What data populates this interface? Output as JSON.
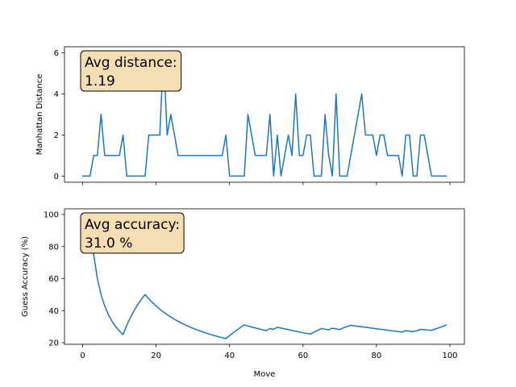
{
  "chart_data": [
    {
      "type": "line",
      "title": "",
      "xlabel": "",
      "ylabel": "Manhattan Distance",
      "xlim": [
        -4.95,
        103.95
      ],
      "ylim": [
        -0.3,
        6.3
      ],
      "xticks": [
        0,
        20,
        40,
        60,
        80,
        100
      ],
      "xtick_labels_visible": false,
      "yticks": [
        0,
        2,
        4,
        6
      ],
      "ytick_labels": [
        "0",
        "2",
        "4",
        "6"
      ],
      "grid": false,
      "annotation": {
        "line1": "Avg distance:",
        "line2": "1.19",
        "placement": "top-left",
        "facecolor": "#f5deb3"
      },
      "series": [
        {
          "color": "#1f77b4",
          "x": [
            0,
            1,
            2,
            3,
            4,
            5,
            6,
            7,
            8,
            9,
            10,
            11,
            12,
            13,
            14,
            15,
            16,
            17,
            18,
            19,
            20,
            21,
            22,
            23,
            24,
            25,
            26,
            27,
            28,
            29,
            30,
            31,
            32,
            33,
            34,
            35,
            36,
            37,
            38,
            39,
            40,
            41,
            42,
            43,
            44,
            45,
            46,
            47,
            48,
            49,
            50,
            51,
            52,
            53,
            54,
            55,
            56,
            57,
            58,
            59,
            60,
            61,
            62,
            63,
            64,
            65,
            66,
            67,
            68,
            69,
            70,
            71,
            72,
            73,
            74,
            75,
            76,
            77,
            78,
            79,
            80,
            81,
            82,
            83,
            84,
            85,
            86,
            87,
            88,
            89,
            90,
            91,
            92,
            93,
            94,
            95,
            96,
            97,
            98,
            99
          ],
          "y": [
            0,
            0,
            0,
            1,
            1,
            3,
            1,
            1,
            1,
            1,
            1,
            2,
            0,
            0,
            0,
            0,
            0,
            0,
            2,
            2,
            2,
            2,
            6,
            2,
            3,
            2,
            1,
            1,
            1,
            1,
            1,
            1,
            1,
            1,
            1,
            1,
            1,
            1,
            1,
            2,
            0,
            0,
            0,
            0,
            0,
            3,
            2,
            1,
            1,
            1,
            1,
            3,
            0,
            2,
            0,
            1,
            2,
            1,
            4,
            1,
            1,
            2,
            2,
            0,
            0,
            0,
            3,
            1,
            0,
            4,
            0,
            0,
            0,
            1,
            2,
            3,
            4,
            2,
            2,
            2,
            1,
            2,
            2,
            1,
            1,
            1,
            1,
            0,
            2,
            2,
            0,
            0,
            2,
            2,
            1,
            0,
            0,
            0,
            0,
            0
          ]
        }
      ]
    },
    {
      "type": "line",
      "title": "",
      "xlabel": "Move",
      "ylabel": "Guess Accuracy (%)",
      "xlim": [
        -4.95,
        103.95
      ],
      "ylim": [
        19,
        103.5
      ],
      "xticks": [
        0,
        20,
        40,
        60,
        80,
        100
      ],
      "xtick_labels": [
        "0",
        "20",
        "40",
        "60",
        "80",
        "100"
      ],
      "yticks": [
        20,
        40,
        60,
        80,
        100
      ],
      "ytick_labels": [
        "20",
        "40",
        "60",
        "80",
        "100"
      ],
      "grid": false,
      "annotation": {
        "line1": "Avg accuracy:",
        "line2": "31.0 %",
        "placement": "top-left",
        "facecolor": "#f5deb3"
      },
      "series": [
        {
          "color": "#1f77b4",
          "x": [
            0,
            1,
            2,
            3,
            4,
            5,
            6,
            7,
            8,
            9,
            10,
            11,
            12,
            13,
            14,
            15,
            16,
            17,
            18,
            19,
            20,
            21,
            22,
            23,
            24,
            25,
            26,
            27,
            28,
            29,
            30,
            31,
            32,
            33,
            34,
            35,
            36,
            37,
            38,
            39,
            40,
            41,
            42,
            43,
            44,
            45,
            46,
            47,
            48,
            49,
            50,
            51,
            52,
            53,
            54,
            55,
            56,
            57,
            58,
            59,
            60,
            61,
            62,
            63,
            64,
            65,
            66,
            67,
            68,
            69,
            70,
            71,
            72,
            73,
            74,
            75,
            76,
            77,
            78,
            79,
            80,
            81,
            82,
            83,
            84,
            85,
            86,
            87,
            88,
            89,
            90,
            91,
            92,
            93,
            94,
            95,
            96,
            97,
            98,
            99
          ],
          "y": [
            100,
            100,
            100,
            75,
            60,
            50,
            42.9,
            37.5,
            33.3,
            30,
            27.3,
            25,
            30.8,
            35.7,
            40,
            43.8,
            47.1,
            50,
            47.4,
            45,
            42.9,
            40.9,
            39.1,
            37.5,
            36,
            34.6,
            33.3,
            32.1,
            31,
            30,
            29,
            28.1,
            27.3,
            26.5,
            25.7,
            25,
            24.3,
            23.7,
            23.1,
            22.5,
            24.4,
            26.2,
            27.9,
            29.5,
            31.1,
            30.4,
            29.8,
            29.2,
            28.6,
            28,
            27.5,
            28.8,
            28.3,
            29.6,
            29.1,
            28.6,
            28.1,
            27.6,
            27.1,
            26.7,
            26.2,
            25.8,
            25.4,
            26.6,
            27.7,
            28.8,
            28.4,
            28,
            29,
            28.6,
            28.2,
            29.2,
            30.1,
            30.8,
            30.5,
            30.2,
            29.9,
            29.6,
            29.3,
            29,
            28.7,
            28.4,
            28.1,
            27.8,
            27.5,
            27.2,
            26.9,
            26.6,
            27.5,
            27.2,
            26.9,
            27.4,
            28.3,
            28.1,
            27.9,
            27.7,
            28.5,
            29.3,
            30.1,
            31
          ]
        }
      ]
    }
  ]
}
